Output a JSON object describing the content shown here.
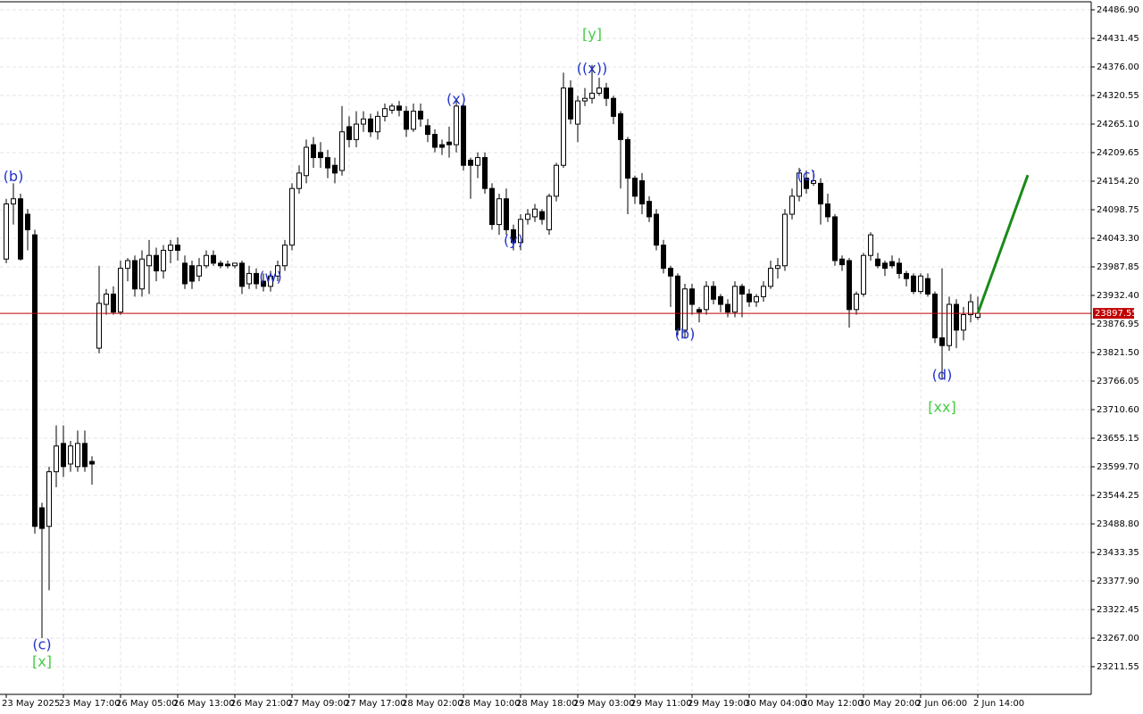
{
  "chart_data": {
    "type": "candlestick",
    "x": [
      "23 May 2025",
      null,
      null,
      null,
      null,
      null,
      null,
      null,
      "23 May 17:00",
      null,
      null,
      null,
      null,
      null,
      null,
      null,
      "26 May 05:00",
      null,
      null,
      null,
      null,
      null,
      null,
      null,
      "26 May 13:00",
      null,
      null,
      null,
      null,
      null,
      null,
      null,
      "26 May 21:00",
      null,
      null,
      null,
      null,
      null,
      null,
      null,
      "27 May 09:00",
      null,
      null,
      null,
      null,
      null,
      null,
      null,
      "27 May 17:00",
      null,
      null,
      null,
      null,
      null,
      null,
      null,
      "28 May 02:00",
      null,
      null,
      null,
      null,
      null,
      null,
      null,
      "28 May 10:00",
      null,
      null,
      null,
      null,
      null,
      null,
      null,
      "28 May 18:00",
      null,
      null,
      null,
      null,
      null,
      null,
      null,
      "29 May 03:00",
      null,
      null,
      null,
      null,
      null,
      null,
      null,
      "29 May 11:00",
      null,
      null,
      null,
      null,
      null,
      null,
      null,
      "29 May 19:00",
      null,
      null,
      null,
      null,
      null,
      null,
      null,
      "30 May 04:00",
      null,
      null,
      null,
      null,
      null,
      null,
      null,
      "30 May 12:00",
      null,
      null,
      null,
      null,
      null,
      null,
      null,
      "30 May 20:00",
      null,
      null,
      null,
      null,
      null,
      null,
      null,
      "2 Jun 06:00",
      null,
      null,
      null,
      null,
      null,
      null,
      null,
      "2 Jun 14:00"
    ],
    "open": [
      24003,
      24110,
      24120,
      24090,
      24050,
      23520,
      23484,
      23590,
      23645,
      23605,
      23600,
      23645,
      23610,
      23830,
      23915,
      23935,
      23900,
      23985,
      24000,
      23945,
      23990,
      24010,
      23980,
      24020,
      24030,
      23995,
      23990,
      23970,
      23990,
      24010,
      23995,
      23993,
      23990,
      23995,
      23955,
      23975,
      23960,
      23950,
      23970,
      23990,
      24030,
      24140,
      24165,
      24225,
      24210,
      24200,
      24185,
      24175,
      24260,
      24235,
      24265,
      24275,
      24250,
      24280,
      24292,
      24300,
      24290,
      24255,
      24290,
      24262,
      24245,
      24225,
      24230,
      24225,
      24300,
      24195,
      24185,
      24200,
      24140,
      24070,
      24120,
      24060,
      24035,
      24080,
      24085,
      24095,
      24060,
      24125,
      24185,
      24335,
      24265,
      24310,
      24315,
      24325,
      24335,
      24315,
      24285,
      24235,
      24160,
      24155,
      24115,
      24090,
      24030,
      23985,
      23970,
      23865,
      23945,
      23905,
      23905,
      23950,
      23930,
      23915,
      23900,
      23950,
      23935,
      23920,
      23930,
      23950,
      23985,
      23990,
      24090,
      24125,
      24160,
      24150,
      24150,
      24110,
      24085,
      24003,
      24000,
      23905,
      23935,
      24010,
      24003,
      23995,
      23998,
      23995,
      23975,
      23970,
      23940,
      23965,
      23935,
      23850,
      23835,
      23915,
      23865,
      23895,
      23890
    ],
    "high": [
      24120,
      24150,
      24130,
      24100,
      24060,
      23530,
      23600,
      23680,
      23680,
      23650,
      23670,
      23670,
      23620,
      23990,
      23945,
      23950,
      24000,
      24005,
      24010,
      24020,
      24040,
      24025,
      24030,
      24040,
      24045,
      24010,
      24000,
      24005,
      24020,
      24020,
      24000,
      24000,
      23995,
      24000,
      23990,
      23985,
      23975,
      23980,
      24000,
      24040,
      24150,
      24185,
      24235,
      24240,
      24230,
      24215,
      24200,
      24300,
      24280,
      24290,
      24290,
      24285,
      24290,
      24305,
      24305,
      24310,
      24300,
      24305,
      24305,
      24275,
      24255,
      24235,
      24260,
      24310,
      24305,
      24200,
      24210,
      24210,
      24150,
      24130,
      24140,
      24070,
      24090,
      24100,
      24110,
      24100,
      24130,
      24190,
      24365,
      24350,
      24320,
      24335,
      24380,
      24355,
      24345,
      24320,
      24290,
      24240,
      24165,
      24170,
      24125,
      24100,
      24040,
      23990,
      23975,
      23955,
      23955,
      23910,
      23960,
      23960,
      23935,
      23925,
      23960,
      23955,
      23945,
      23935,
      23960,
      24000,
      24005,
      24100,
      24140,
      24180,
      24175,
      24175,
      24160,
      24130,
      24090,
      24010,
      24005,
      23940,
      24015,
      24055,
      24015,
      24000,
      24010,
      24005,
      23980,
      23975,
      23975,
      23975,
      23940,
      23985,
      23930,
      23925,
      23910,
      23935,
      23930
    ],
    "low": [
      23995,
      24070,
      24000,
      24020,
      23470,
      23267,
      23360,
      23560,
      23580,
      23590,
      23590,
      23590,
      23565,
      23820,
      23895,
      23895,
      23895,
      23960,
      23930,
      23930,
      23935,
      23960,
      23965,
      23995,
      24000,
      23945,
      23945,
      23960,
      23985,
      23990,
      23985,
      23985,
      23985,
      23935,
      23945,
      23945,
      23940,
      23940,
      23960,
      23980,
      24020,
      24130,
      24150,
      24180,
      24180,
      24160,
      24150,
      24165,
      24220,
      24220,
      24250,
      24240,
      24235,
      24270,
      24285,
      24280,
      24240,
      24250,
      24260,
      24230,
      24210,
      24205,
      24200,
      24210,
      24175,
      24120,
      24160,
      24130,
      24060,
      24050,
      24050,
      24020,
      24020,
      24070,
      24075,
      24070,
      24050,
      24115,
      24180,
      24265,
      24230,
      24300,
      24305,
      24320,
      24300,
      24265,
      24140,
      24090,
      24110,
      24090,
      24075,
      24020,
      23975,
      23910,
      23855,
      23850,
      23895,
      23880,
      23895,
      23915,
      23900,
      23890,
      23890,
      23890,
      23910,
      23910,
      23920,
      23945,
      23965,
      23980,
      24080,
      24115,
      24130,
      24145,
      24070,
      24075,
      23990,
      23980,
      23870,
      23895,
      23930,
      24000,
      23985,
      23970,
      23985,
      23965,
      23950,
      23935,
      23935,
      23930,
      23840,
      23770,
      23825,
      23830,
      23845,
      23880,
      23885
    ],
    "close": [
      24110,
      24120,
      24003,
      24060,
      23484,
      23480,
      23590,
      23640,
      23600,
      23640,
      23645,
      23600,
      23605,
      23917,
      23935,
      23900,
      23985,
      24000,
      23945,
      24003,
      24010,
      23980,
      24020,
      24030,
      24020,
      23955,
      23960,
      23990,
      24010,
      23995,
      23990,
      23990,
      23995,
      23950,
      23975,
      23955,
      23950,
      23970,
      23990,
      24030,
      24140,
      24170,
      24220,
      24200,
      24200,
      24180,
      24170,
      24250,
      24235,
      24265,
      24275,
      24250,
      24280,
      24295,
      24300,
      24292,
      24255,
      24290,
      24275,
      24245,
      24220,
      24220,
      24225,
      24300,
      24185,
      24185,
      24200,
      24140,
      24070,
      24120,
      24060,
      24035,
      24080,
      24090,
      24100,
      24080,
      24125,
      24185,
      24335,
      24275,
      24310,
      24315,
      24325,
      24335,
      24315,
      24280,
      24235,
      24160,
      24125,
      24110,
      24085,
      24030,
      23985,
      23970,
      23865,
      23945,
      23915,
      23900,
      23950,
      23925,
      23915,
      23900,
      23950,
      23935,
      23920,
      23930,
      23950,
      23985,
      23990,
      24090,
      24125,
      24170,
      24140,
      24155,
      24110,
      24085,
      24000,
      23992,
      23905,
      23935,
      24010,
      24050,
      23990,
      23985,
      23990,
      23975,
      23965,
      23940,
      23970,
      23935,
      23850,
      23835,
      23915,
      23865,
      23895,
      23920,
      23897.55
    ],
    "up_color": "#ffffff",
    "down_color": "#000000",
    "ylim": [
      23157.8,
      24502.5
    ],
    "yticks": [
      {
        "value": 24486.9,
        "label": "24486.90"
      },
      {
        "value": 24431.45,
        "label": "24431.45"
      },
      {
        "value": 24376,
        "label": "24376.00"
      },
      {
        "value": 24320.55,
        "label": "24320.55"
      },
      {
        "value": 24265.1,
        "label": "24265.10"
      },
      {
        "value": 24209.65,
        "label": "24209.65"
      },
      {
        "value": 24154.2,
        "label": "24154.20"
      },
      {
        "value": 24098.75,
        "label": "24098.75"
      },
      {
        "value": 24043.3,
        "label": "24043.30"
      },
      {
        "value": 23987.85,
        "label": "23987.85"
      },
      {
        "value": 23932.4,
        "label": "23932.40"
      },
      {
        "value": 23876.95,
        "label": "23876.95"
      },
      {
        "value": 23821.5,
        "label": "23821.50"
      },
      {
        "value": 23766.05,
        "label": "23766.05"
      },
      {
        "value": 23710.6,
        "label": "23710.60"
      },
      {
        "value": 23655.15,
        "label": "23655.15"
      },
      {
        "value": 23599.7,
        "label": "23599.70"
      },
      {
        "value": 23544.25,
        "label": "23544.25"
      },
      {
        "value": 23488.8,
        "label": "23488.80"
      },
      {
        "value": 23433.35,
        "label": "23433.35"
      },
      {
        "value": 23377.9,
        "label": "23377.90"
      },
      {
        "value": 23322.45,
        "label": "23322.45"
      },
      {
        "value": 23267,
        "label": "23267.00"
      },
      {
        "value": 23211.55,
        "label": "23211.55"
      }
    ],
    "grid": true,
    "last_price": {
      "value": 23897.55,
      "label": "23897.55",
      "color": "#c00000"
    },
    "forecast": {
      "x": [
        136,
        143
      ],
      "y": [
        23897.55,
        24166
      ],
      "color": "#1a8a1a"
    },
    "annotations": [
      {
        "text": "(b)",
        "x": 1,
        "y": 24162,
        "color": "#2233cc"
      },
      {
        "text": "(c)",
        "x": 5,
        "y": 23253,
        "color": "#2233cc"
      },
      {
        "text": "[x]",
        "x": 5,
        "y": 23220,
        "color": "#44cc44"
      },
      {
        "text": "(w)",
        "x": 37,
        "y": 23967,
        "color": "#2233cc"
      },
      {
        "text": "(x)",
        "x": 63,
        "y": 24312,
        "color": "#2233cc"
      },
      {
        "text": "(y)",
        "x": 71,
        "y": 24038,
        "color": "#2233cc"
      },
      {
        "text": "[y]",
        "x": 82,
        "y": 24438,
        "color": "#44cc44"
      },
      {
        "text": "((x))",
        "x": 82,
        "y": 24372,
        "color": "#2233cc"
      },
      {
        "text": "(b)",
        "x": 95,
        "y": 23856,
        "color": "#2233cc"
      },
      {
        "text": "(c)",
        "x": 112,
        "y": 24164,
        "color": "#2233cc"
      },
      {
        "text": "(d)",
        "x": 131,
        "y": 23776,
        "color": "#2233cc"
      },
      {
        "text": "[xx]",
        "x": 131,
        "y": 23714,
        "color": "#44cc44"
      }
    ]
  }
}
